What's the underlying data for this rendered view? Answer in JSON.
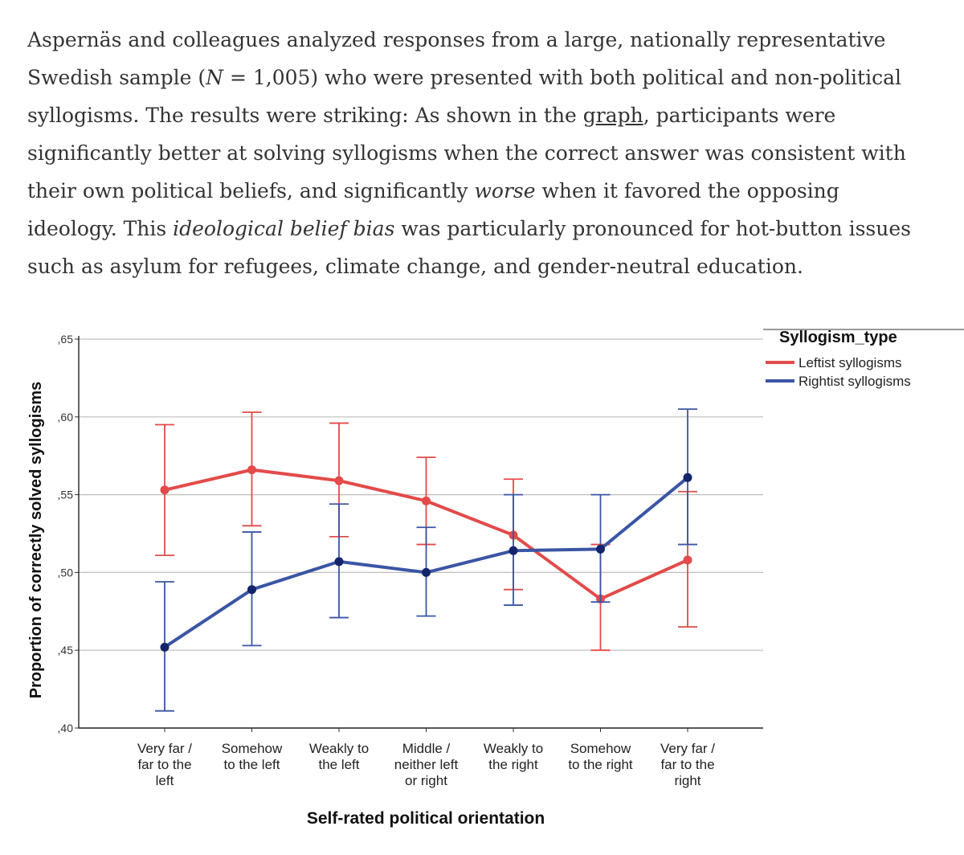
{
  "article": {
    "line1": "Aspernäs and colleagues analyzed responses from a large, nationally representative",
    "line2_a": "Swedish sample (",
    "line2_n": "N",
    "line2_b": " = 1,005) who were presented with both political and non-political",
    "line3_a": "syllogisms. The results were striking: As shown in the ",
    "line3_link": "graph",
    "line3_b": ", participants were",
    "line4": "significantly better at solving syllogisms when the correct answer was consistent with",
    "line5_a": "their own political beliefs, and significantly ",
    "line5_em": "worse",
    "line5_b": " when it favored the opposing",
    "line6_a": "ideology. This ",
    "line6_em": "ideological belief bias",
    "line6_b": " was particularly pronounced for hot-button issues",
    "line7": "such as asylum for refugees, climate change, and gender-neutral education."
  },
  "chart_data": {
    "type": "line",
    "title": "",
    "xlabel": "Self-rated political orientation",
    "ylabel": "Proportion of correctly solved syllogisms",
    "ylim": [
      0.4,
      0.65
    ],
    "yticks": [
      0.4,
      0.45,
      0.5,
      0.55,
      0.6,
      0.65
    ],
    "ytick_labels": [
      ",40",
      ",45",
      ",50",
      ",55",
      ",60",
      ",65"
    ],
    "grid": true,
    "categories": [
      [
        "Very far /",
        "far to the",
        "left"
      ],
      [
        "Somehow",
        "to the left"
      ],
      [
        "Weakly to",
        "the left"
      ],
      [
        "Middle /",
        "neither left",
        "or right"
      ],
      [
        "Weakly to",
        "the right"
      ],
      [
        "Somehow",
        "to the right"
      ],
      [
        "Very far /",
        "far to the",
        "right"
      ]
    ],
    "legend": {
      "title": "Syllogism_type",
      "placement": "top-right"
    },
    "series": [
      {
        "name": "Leftist syllogisms",
        "color": "#e34a4a",
        "values": [
          0.553,
          0.566,
          0.559,
          0.546,
          0.524,
          0.483,
          0.508
        ],
        "err_low": [
          0.511,
          0.53,
          0.523,
          0.518,
          0.489,
          0.45,
          0.465
        ],
        "err_high": [
          0.595,
          0.603,
          0.596,
          0.574,
          0.56,
          0.518,
          0.552
        ]
      },
      {
        "name": "Rightist syllogisms",
        "color": "#3a55a4",
        "point_color": "#13246b",
        "values": [
          0.452,
          0.489,
          0.507,
          0.5,
          0.514,
          0.515,
          0.561
        ],
        "err_low": [
          0.411,
          0.453,
          0.471,
          0.472,
          0.479,
          0.481,
          0.518
        ],
        "err_high": [
          0.494,
          0.526,
          0.544,
          0.529,
          0.55,
          0.55,
          0.605
        ]
      }
    ]
  }
}
